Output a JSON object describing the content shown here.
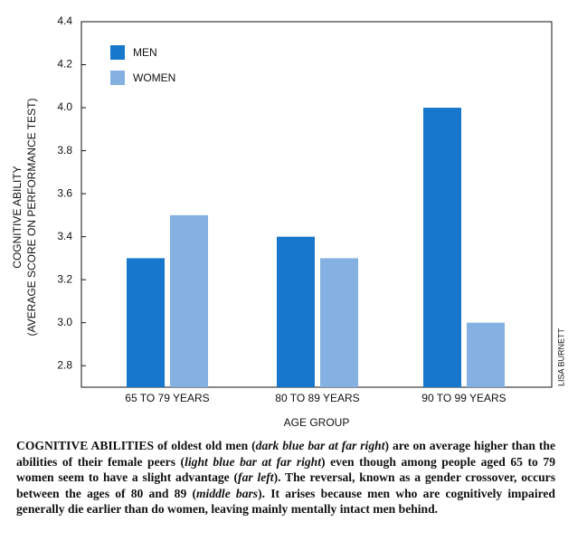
{
  "chart_data": {
    "type": "bar",
    "y_label": [
      "COGNITIVE ABILITY",
      "(AVERAGE SCORE ON PERFORMANCE TEST)"
    ],
    "x_label": "AGE GROUP",
    "credit": "LISA BURNETT",
    "categories": [
      "65 TO 79 YEARS",
      "80 TO 89 YEARS",
      "90 TO 99 YEARS"
    ],
    "series": [
      {
        "name": "MEN",
        "color": "#1777cc",
        "values": [
          3.3,
          3.4,
          4.0
        ]
      },
      {
        "name": "WOMEN",
        "color": "#85b1e2",
        "values": [
          3.5,
          3.3,
          3.0
        ]
      }
    ],
    "ylim": [
      2.7,
      4.4
    ],
    "yticks": [
      {
        "value": 2.8,
        "label": "2.8"
      },
      {
        "value": 3.0,
        "label": "3.0"
      },
      {
        "value": 3.2,
        "label": "3.2"
      },
      {
        "value": 3.4,
        "label": "3.4"
      },
      {
        "value": 3.6,
        "label": "3.6"
      },
      {
        "value": 3.8,
        "label": "3.8"
      },
      {
        "value": 4.0,
        "label": "4.0"
      },
      {
        "value": 4.2,
        "label": "4.2"
      },
      {
        "value": 4.4,
        "label": "4.4"
      }
    ],
    "legend": "upper left"
  },
  "caption": {
    "parts": [
      "COGNITIVE ABILITIES",
      " of oldest old men (",
      "dark blue bar at far right",
      ") are on average higher than the abilities of their female peers (",
      "light blue bar at far right",
      ") even though among people aged 65 to 79 women seem to have a slight advantage (",
      "far left",
      "). The reversal, known as a gender crossover, occurs between the ages of 80 and 89 (",
      "middle bars",
      "). It arises because men who are cognitively impaired generally die earlier than do women, leaving mainly mentally intact men behind."
    ]
  }
}
